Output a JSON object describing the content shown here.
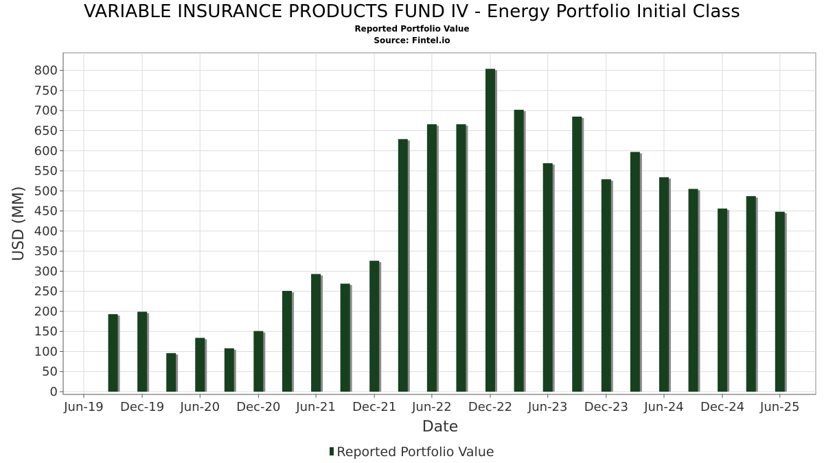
{
  "chart_data": {
    "type": "bar",
    "title": "VARIABLE INSURANCE PRODUCTS FUND IV - Energy Portfolio Initial Class",
    "subtitle": "Reported Portfolio Value",
    "source": "Source: Fintel.io",
    "xlabel": "Date",
    "ylabel": "USD (MM)",
    "ylim": [
      0,
      820
    ],
    "yticks": [
      0,
      50,
      100,
      150,
      200,
      250,
      300,
      350,
      400,
      450,
      500,
      550,
      600,
      650,
      700,
      750,
      800
    ],
    "xticks": [
      "Jun-19",
      "Dec-19",
      "Jun-20",
      "Dec-20",
      "Jun-21",
      "Dec-21",
      "Jun-22",
      "Dec-22",
      "Jun-23",
      "Dec-23",
      "Jun-24",
      "Dec-24",
      "Jun-25"
    ],
    "grid": true,
    "legend_position": "bottom",
    "series": [
      {
        "name": "Reported Portfolio Value",
        "color": "#17401f",
        "x": [
          "2019-09-30",
          "2019-12-31",
          "2020-03-31",
          "2020-06-30",
          "2020-09-30",
          "2020-12-31",
          "2021-03-31",
          "2021-06-30",
          "2021-09-30",
          "2021-12-31",
          "2022-03-31",
          "2022-06-30",
          "2022-09-30",
          "2022-12-31",
          "2023-03-31",
          "2023-06-30",
          "2023-09-30",
          "2023-12-31",
          "2024-03-31",
          "2024-06-30",
          "2024-09-30",
          "2024-12-31",
          "2025-03-31",
          "2025-06-30"
        ],
        "values": [
          193,
          199,
          96,
          134,
          108,
          151,
          251,
          293,
          269,
          326,
          629,
          666,
          666,
          804,
          702,
          569,
          685,
          529,
          597,
          534,
          505,
          456,
          487,
          448
        ]
      }
    ]
  }
}
